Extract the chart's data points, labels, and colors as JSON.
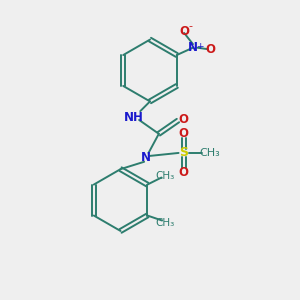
{
  "background_color": "#efefef",
  "bond_color": "#2d7d6e",
  "N_color": "#1a1acc",
  "O_color": "#cc1a1a",
  "S_color": "#cccc00",
  "figsize": [
    3.0,
    3.0
  ],
  "dpi": 100,
  "xlim": [
    0,
    10
  ],
  "ylim": [
    0,
    10
  ]
}
